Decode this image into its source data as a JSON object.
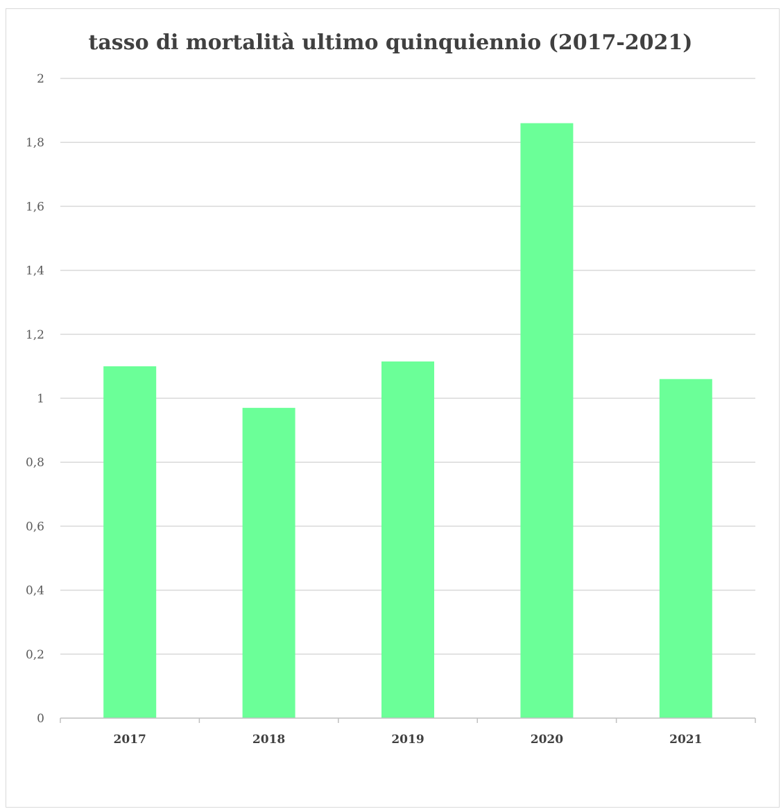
{
  "chart_data": {
    "type": "bar",
    "title": "tasso di mortalità ultimo quinquiennio (2017-2021)",
    "xlabel": "",
    "ylabel": "",
    "categories": [
      "2017",
      "2018",
      "2019",
      "2020",
      "2021"
    ],
    "values": [
      1.1,
      0.97,
      1.115,
      1.86,
      1.06
    ],
    "ylim": [
      0,
      2
    ],
    "yticks": [
      0,
      0.2,
      0.4,
      0.6,
      0.8,
      1,
      1.2,
      1.4,
      1.6,
      1.8,
      2
    ],
    "ytick_labels": [
      "0",
      "0,2",
      "0,4",
      "0,6",
      "0,8",
      "1",
      "1,2",
      "1,4",
      "1,6",
      "1,8",
      "2"
    ],
    "grid": true,
    "legend": "none",
    "bar_color": "#6bff98",
    "grid_color": "#d9d9d9"
  }
}
